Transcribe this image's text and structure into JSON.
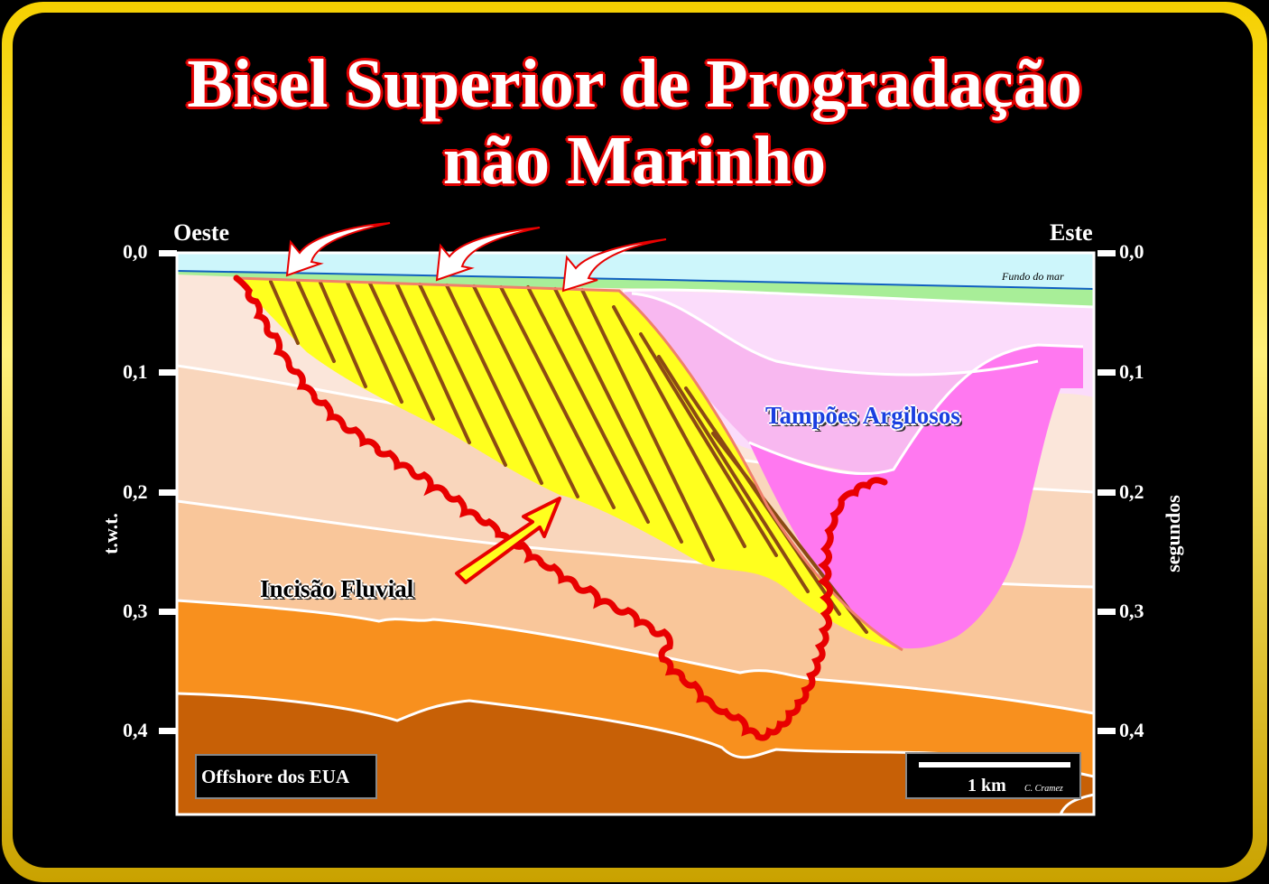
{
  "title": {
    "line1": "Bisel Superior de Progradação",
    "line2": "não Marinho"
  },
  "directions": {
    "west": "Oeste",
    "east": "Este"
  },
  "axes": {
    "left_label": "t.w.t.",
    "right_label": "segundos",
    "ticks": [
      "0,0",
      "0,1",
      "0,2",
      "0,3",
      "0,4"
    ]
  },
  "labels": {
    "seafloor": "Fundo do mar",
    "clay_plugs": "Tampões Argilosos",
    "fluvial_incision": "Incisão Fluvial",
    "location": "Offshore dos EUA",
    "scale": "1 km",
    "author": "C. Cramez"
  },
  "colors": {
    "title_outline": "#e00000",
    "frame": "#f5d000",
    "water": "#cdf6fb",
    "seafloor_line": "#1060c0",
    "green_layer": "#a8ee98",
    "layer1": "#fbe6da",
    "layer2": "#f9d6bc",
    "layer3": "#f9c69a",
    "layer4": "#f8901e",
    "layer5": "#c76006",
    "clay_light": "#fbdcfb",
    "clay_mid": "#f8b8f0",
    "clay_dark": "#ff78f0",
    "fill_yellow": "#ffff1e",
    "incision_line": "#e80000",
    "strata_lines": "#8b4a14"
  }
}
